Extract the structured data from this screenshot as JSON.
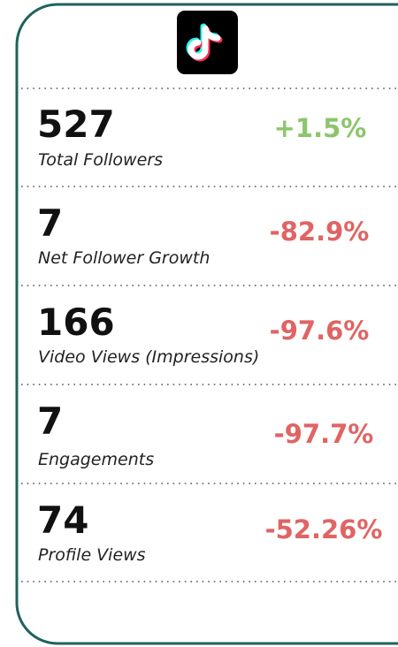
{
  "metrics": [
    {
      "value": "527",
      "label": "Total Followers",
      "change": "+1.5%"
    },
    {
      "value": "7",
      "label": "Net Follower Growth",
      "change": "-82.9%"
    },
    {
      "value": "166",
      "label": "Video Views (Impressions)",
      "change": "-97.6%"
    },
    {
      "value": "7",
      "label": "Engagements",
      "change": "-97.7%"
    },
    {
      "value": "74",
      "label": "Profile Views",
      "change": "-52.26%"
    }
  ]
}
